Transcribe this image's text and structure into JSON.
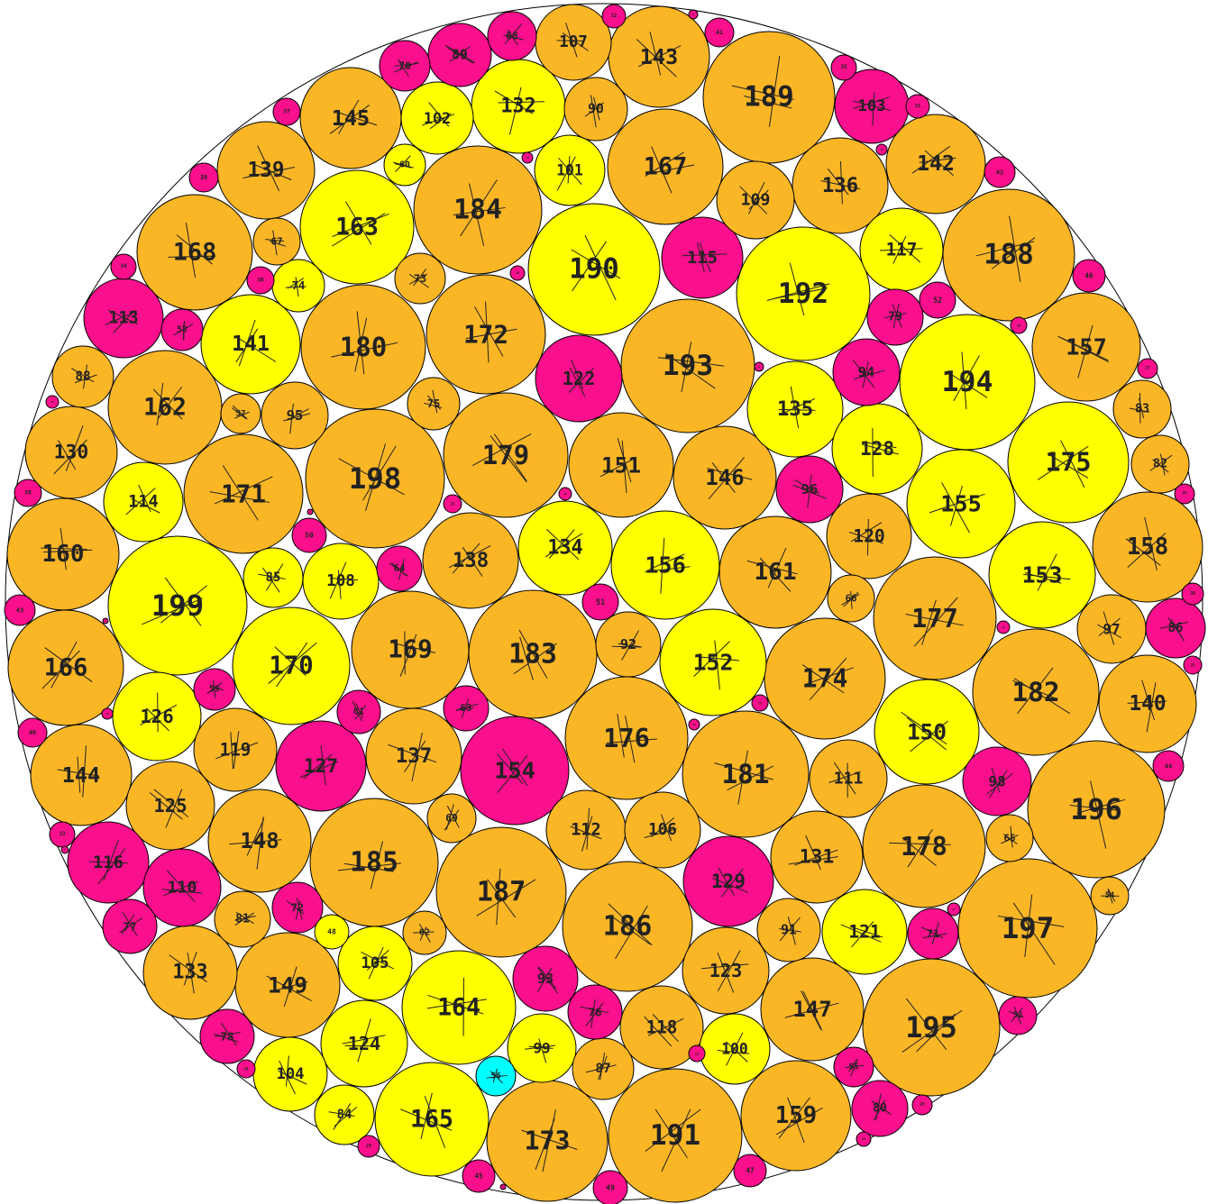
{
  "colors": {
    "orange": "#fbb626",
    "yellow": "#ffff00",
    "magenta": "#fa0f8c",
    "cyan": "#00ffff",
    "stroke": "#000000",
    "background": "#ffffff"
  },
  "circles": [
    {
      "label": "199",
      "color": "yellow"
    },
    {
      "label": "198",
      "color": "orange"
    },
    {
      "label": "197",
      "color": "orange"
    },
    {
      "label": "196",
      "color": "orange"
    },
    {
      "label": "195",
      "color": "orange"
    },
    {
      "label": "194",
      "color": "yellow"
    },
    {
      "label": "193",
      "color": "orange"
    },
    {
      "label": "192",
      "color": "yellow"
    },
    {
      "label": "191",
      "color": "orange"
    },
    {
      "label": "190",
      "color": "yellow"
    },
    {
      "label": "189",
      "color": "orange"
    },
    {
      "label": "188",
      "color": "orange"
    },
    {
      "label": "187",
      "color": "orange"
    },
    {
      "label": "186",
      "color": "orange"
    },
    {
      "label": "185",
      "color": "orange"
    },
    {
      "label": "184",
      "color": "orange"
    },
    {
      "label": "183",
      "color": "orange"
    },
    {
      "label": "182",
      "color": "orange"
    },
    {
      "label": "181",
      "color": "orange"
    },
    {
      "label": "180",
      "color": "orange"
    },
    {
      "label": "179",
      "color": "orange"
    },
    {
      "label": "178",
      "color": "orange"
    },
    {
      "label": "177",
      "color": "orange"
    },
    {
      "label": "176",
      "color": "orange"
    },
    {
      "label": "175",
      "color": "yellow"
    },
    {
      "label": "174",
      "color": "orange"
    },
    {
      "label": "173",
      "color": "orange"
    },
    {
      "label": "172",
      "color": "orange"
    },
    {
      "label": "171",
      "color": "orange"
    },
    {
      "label": "170",
      "color": "yellow"
    },
    {
      "label": "169",
      "color": "orange"
    },
    {
      "label": "168",
      "color": "orange"
    },
    {
      "label": "167",
      "color": "orange"
    },
    {
      "label": "166",
      "color": "orange"
    },
    {
      "label": "165",
      "color": "yellow"
    },
    {
      "label": "164",
      "color": "yellow"
    },
    {
      "label": "163",
      "color": "yellow"
    },
    {
      "label": "162",
      "color": "orange"
    },
    {
      "label": "161",
      "color": "orange"
    },
    {
      "label": "160",
      "color": "orange"
    },
    {
      "label": "159",
      "color": "orange"
    },
    {
      "label": "158",
      "color": "orange"
    },
    {
      "label": "157",
      "color": "orange"
    },
    {
      "label": "156",
      "color": "yellow"
    },
    {
      "label": "155",
      "color": "yellow"
    },
    {
      "label": "154",
      "color": "magenta"
    },
    {
      "label": "153",
      "color": "yellow"
    },
    {
      "label": "152",
      "color": "yellow"
    },
    {
      "label": "151",
      "color": "orange"
    },
    {
      "label": "150",
      "color": "yellow"
    },
    {
      "label": "149",
      "color": "orange"
    },
    {
      "label": "148",
      "color": "orange"
    },
    {
      "label": "147",
      "color": "orange"
    },
    {
      "label": "146",
      "color": "orange"
    },
    {
      "label": "145",
      "color": "orange"
    },
    {
      "label": "144",
      "color": "orange"
    },
    {
      "label": "143",
      "color": "orange"
    },
    {
      "label": "142",
      "color": "orange"
    },
    {
      "label": "141",
      "color": "yellow"
    },
    {
      "label": "140",
      "color": "orange"
    },
    {
      "label": "139",
      "color": "orange"
    },
    {
      "label": "138",
      "color": "orange"
    },
    {
      "label": "137",
      "color": "orange"
    },
    {
      "label": "136",
      "color": "orange"
    },
    {
      "label": "135",
      "color": "yellow"
    },
    {
      "label": "134",
      "color": "yellow"
    },
    {
      "label": "133",
      "color": "orange"
    },
    {
      "label": "132",
      "color": "yellow"
    },
    {
      "label": "131",
      "color": "orange"
    },
    {
      "label": "130",
      "color": "orange"
    },
    {
      "label": "129",
      "color": "magenta"
    },
    {
      "label": "128",
      "color": "yellow"
    },
    {
      "label": "127",
      "color": "magenta"
    },
    {
      "label": "126",
      "color": "yellow"
    },
    {
      "label": "125",
      "color": "orange"
    },
    {
      "label": "124",
      "color": "yellow"
    },
    {
      "label": "123",
      "color": "orange"
    },
    {
      "label": "122",
      "color": "magenta"
    },
    {
      "label": "121",
      "color": "yellow"
    },
    {
      "label": "120",
      "color": "orange"
    },
    {
      "label": "119",
      "color": "orange"
    },
    {
      "label": "118",
      "color": "orange"
    },
    {
      "label": "117",
      "color": "yellow"
    },
    {
      "label": "116",
      "color": "magenta"
    },
    {
      "label": "115",
      "color": "magenta"
    },
    {
      "label": "114",
      "color": "yellow"
    },
    {
      "label": "113",
      "color": "magenta"
    },
    {
      "label": "112",
      "color": "orange"
    },
    {
      "label": "111",
      "color": "orange"
    },
    {
      "label": "110",
      "color": "magenta"
    },
    {
      "label": "109",
      "color": "orange"
    },
    {
      "label": "108",
      "color": "yellow"
    },
    {
      "label": "107",
      "color": "orange"
    },
    {
      "label": "106",
      "color": "orange"
    },
    {
      "label": "105",
      "color": "yellow"
    },
    {
      "label": "104",
      "color": "yellow"
    },
    {
      "label": "103",
      "color": "magenta"
    },
    {
      "label": "102",
      "color": "yellow"
    },
    {
      "label": "101",
      "color": "yellow"
    },
    {
      "label": "100",
      "color": "yellow"
    },
    {
      "label": "99",
      "color": "yellow"
    },
    {
      "label": "98",
      "color": "magenta"
    },
    {
      "label": "97",
      "color": "orange"
    },
    {
      "label": "96",
      "color": "magenta"
    },
    {
      "label": "95",
      "color": "orange"
    },
    {
      "label": "94",
      "color": "magenta"
    },
    {
      "label": "93",
      "color": "magenta"
    },
    {
      "label": "92",
      "color": "orange"
    },
    {
      "label": "91",
      "color": "orange"
    },
    {
      "label": "90",
      "color": "orange"
    },
    {
      "label": "89",
      "color": "magenta"
    },
    {
      "label": "88",
      "color": "orange"
    },
    {
      "label": "87",
      "color": "orange"
    },
    {
      "label": "86",
      "color": "magenta"
    },
    {
      "label": "85",
      "color": "yellow"
    },
    {
      "label": "84",
      "color": "yellow"
    },
    {
      "label": "83",
      "color": "orange"
    },
    {
      "label": "82",
      "color": "orange"
    },
    {
      "label": "81",
      "color": "orange"
    },
    {
      "label": "80",
      "color": "magenta"
    },
    {
      "label": "79",
      "color": "magenta"
    },
    {
      "label": "78",
      "color": "magenta"
    },
    {
      "label": "77",
      "color": "magenta"
    },
    {
      "label": "76",
      "color": "magenta"
    },
    {
      "label": "75",
      "color": "orange"
    },
    {
      "label": "74",
      "color": "yellow"
    },
    {
      "label": "73",
      "color": "orange"
    },
    {
      "label": "72",
      "color": "magenta"
    },
    {
      "label": "71",
      "color": "magenta"
    },
    {
      "label": "70",
      "color": "magenta"
    },
    {
      "label": "69",
      "color": "orange"
    },
    {
      "label": "68",
      "color": "magenta"
    },
    {
      "label": "67",
      "color": "orange"
    },
    {
      "label": "66",
      "color": "orange"
    },
    {
      "label": "65",
      "color": "orange"
    },
    {
      "label": "64",
      "color": "magenta"
    },
    {
      "label": "63",
      "color": "magenta"
    },
    {
      "label": "62",
      "color": "orange"
    },
    {
      "label": "61",
      "color": "magenta"
    },
    {
      "label": "60",
      "color": "yellow"
    },
    {
      "label": "59",
      "color": "magenta"
    },
    {
      "label": "58",
      "color": "magenta"
    },
    {
      "label": "57",
      "color": "orange"
    },
    {
      "label": "56",
      "color": "cyan"
    },
    {
      "label": "55",
      "color": "magenta"
    },
    {
      "label": "54",
      "color": "orange"
    },
    {
      "label": "53",
      "color": "magenta"
    },
    {
      "label": "52",
      "color": "magenta"
    },
    {
      "label": "51",
      "color": "magenta"
    },
    {
      "label": "50",
      "color": "magenta"
    },
    {
      "label": "49",
      "color": "magenta"
    },
    {
      "label": "48",
      "color": "yellow"
    },
    {
      "label": "47",
      "color": "magenta"
    },
    {
      "label": "46",
      "color": "magenta"
    },
    {
      "label": "45",
      "color": "magenta"
    },
    {
      "label": "44",
      "color": "magenta"
    },
    {
      "label": "43",
      "color": "magenta"
    },
    {
      "label": "42",
      "color": "magenta"
    },
    {
      "label": "41",
      "color": "magenta"
    },
    {
      "label": "40",
      "color": "magenta"
    },
    {
      "label": "39",
      "color": "magenta"
    },
    {
      "label": "38",
      "color": "magenta"
    },
    {
      "label": "37",
      "color": "magenta"
    },
    {
      "label": "36",
      "color": "magenta"
    },
    {
      "label": "35",
      "color": "magenta"
    },
    {
      "label": "34",
      "color": "magenta"
    },
    {
      "label": "33",
      "color": "magenta"
    },
    {
      "label": "32",
      "color": "magenta"
    },
    {
      "label": "31",
      "color": "magenta"
    },
    {
      "label": "30",
      "color": "magenta"
    },
    {
      "label": "29",
      "color": "magenta"
    },
    {
      "label": "28",
      "color": "magenta"
    },
    {
      "label": "27",
      "color": "magenta"
    },
    {
      "label": "26",
      "color": "magenta"
    },
    {
      "label": "25",
      "color": "magenta"
    },
    {
      "label": "24",
      "color": "magenta"
    },
    {
      "label": "23",
      "color": "magenta"
    },
    {
      "label": "22",
      "color": "magenta"
    },
    {
      "label": "21",
      "color": "magenta"
    },
    {
      "label": "20",
      "color": "magenta"
    },
    {
      "label": "19",
      "color": "magenta"
    },
    {
      "label": "18",
      "color": "magenta"
    },
    {
      "label": "17",
      "color": "magenta"
    },
    {
      "label": "16",
      "color": "magenta"
    },
    {
      "label": "15",
      "color": "magenta"
    },
    {
      "label": "14",
      "color": "magenta"
    },
    {
      "label": "13",
      "color": "magenta"
    },
    {
      "label": "12",
      "color": "magenta"
    },
    {
      "label": "11",
      "color": "magenta"
    },
    {
      "label": "10",
      "color": "magenta"
    },
    {
      "label": "9",
      "color": "magenta"
    },
    {
      "label": "8",
      "color": "magenta"
    },
    {
      "label": "7",
      "color": "magenta"
    },
    {
      "label": "6",
      "color": "magenta"
    },
    {
      "label": "5",
      "color": "magenta"
    },
    {
      "label": "4",
      "color": "magenta"
    }
  ]
}
